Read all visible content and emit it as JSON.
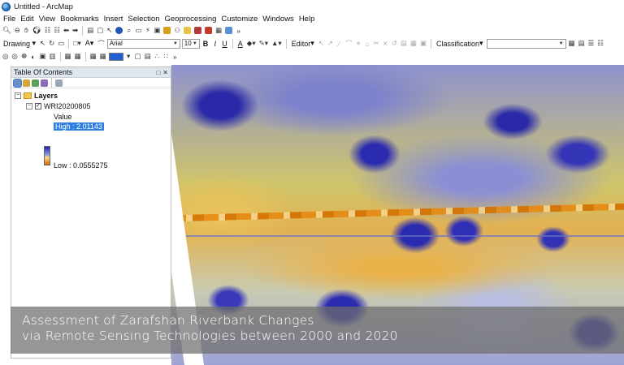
{
  "window": {
    "title": "Untitled - ArcMap"
  },
  "menu": {
    "items": [
      "File",
      "Edit",
      "View",
      "Bookmarks",
      "Insert",
      "Selection",
      "Geoprocessing",
      "Customize",
      "Windows",
      "Help"
    ]
  },
  "draw_toolbar": {
    "drawing_label": "Drawing",
    "font_name": "Arial",
    "font_size": "10",
    "bold_label": "B",
    "italic_label": "I",
    "underline_label": "U",
    "font_color_label": "A",
    "editor_label": "Editor",
    "classification_label": "Classification",
    "classification_value": ""
  },
  "toc": {
    "title": "Table Of Contents",
    "close_glyph": "✕",
    "pin_glyph": "📌",
    "group_label": "Layers",
    "layer_label": "WRI20200805",
    "value_label": "Value",
    "high_label": "High : 2.01143",
    "low_label": "Low : 0.0555275"
  },
  "caption": {
    "line1": "Assessment of Zarafshan Riverbank Changes",
    "line2": "via Remote Sensing Technologies between 2000 and 2020"
  },
  "colors": {
    "ramp_high": "#1d1fb8",
    "ramp_low": "#d46a00",
    "selection_highlight": "#2f7fe0",
    "fill_swatch": "#1f5fd4"
  }
}
